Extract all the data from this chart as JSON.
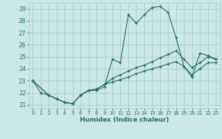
{
  "xlabel": "Humidex (Indice chaleur)",
  "xlim": [
    -0.5,
    23.5
  ],
  "ylim": [
    20.7,
    29.5
  ],
  "yticks": [
    21,
    22,
    23,
    24,
    25,
    26,
    27,
    28,
    29
  ],
  "xticks": [
    0,
    1,
    2,
    3,
    4,
    5,
    6,
    7,
    8,
    9,
    10,
    11,
    12,
    13,
    14,
    15,
    16,
    17,
    18,
    19,
    20,
    21,
    22,
    23
  ],
  "bg_color": "#cce8e4",
  "grid_color": "#a8d0cc",
  "line_color": "#1e6e66",
  "line1_x": [
    0,
    1,
    2,
    3,
    4,
    5,
    6,
    7,
    8,
    9,
    10,
    11,
    12,
    13,
    14,
    15,
    16,
    17,
    18,
    19,
    20,
    21,
    22,
    23
  ],
  "line1_y": [
    23.0,
    22.0,
    21.8,
    21.5,
    21.2,
    21.1,
    21.8,
    22.2,
    22.2,
    22.5,
    24.8,
    24.5,
    28.5,
    27.8,
    28.5,
    29.1,
    29.2,
    28.7,
    26.6,
    24.2,
    23.3,
    25.3,
    25.1,
    24.8
  ],
  "line2_x": [
    0,
    2,
    3,
    4,
    5,
    6,
    7,
    8,
    9,
    10,
    11,
    12,
    13,
    14,
    15,
    16,
    17,
    18,
    19,
    20,
    21,
    22,
    23
  ],
  "line2_y": [
    23.0,
    21.8,
    21.5,
    21.2,
    21.1,
    21.8,
    22.2,
    22.3,
    22.7,
    23.2,
    23.5,
    23.8,
    24.1,
    24.3,
    24.6,
    24.9,
    25.2,
    25.5,
    24.8,
    24.1,
    24.5,
    25.0,
    24.8
  ],
  "line3_x": [
    0,
    2,
    3,
    4,
    5,
    6,
    7,
    8,
    9,
    10,
    11,
    12,
    13,
    14,
    15,
    16,
    17,
    18,
    19,
    20,
    21,
    22,
    23
  ],
  "line3_y": [
    23.0,
    21.8,
    21.5,
    21.2,
    21.1,
    21.8,
    22.2,
    22.3,
    22.7,
    22.9,
    23.1,
    23.3,
    23.6,
    23.8,
    24.0,
    24.2,
    24.4,
    24.6,
    24.2,
    23.5,
    24.0,
    24.5,
    24.5
  ]
}
